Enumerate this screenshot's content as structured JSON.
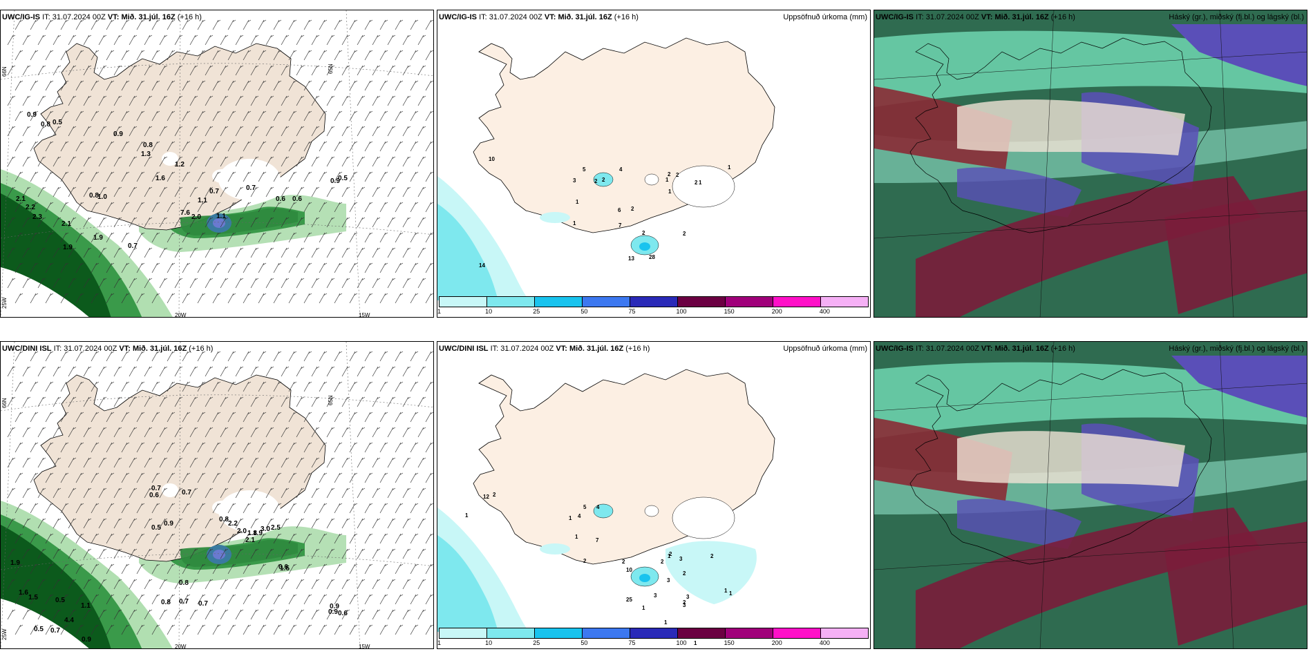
{
  "rows": [
    {
      "model": "UWC/IG-IS",
      "it_label": "IT:",
      "it_value": "31.07.2024 00Z",
      "vt_label": "VT:",
      "vt_value": "Mið. 31.júl. 16Z",
      "lead": "(+16 h)",
      "precip_title": "Uppsöfnuð úrkoma (mm)",
      "cloud_title": "Háský (gr.), miðský (fj.bl.) og lágský (bl.)",
      "wind_values": [
        {
          "t": "0.9"
        },
        {
          "t": "0.8"
        },
        {
          "t": "0.5"
        },
        {
          "t": "0.9"
        },
        {
          "t": "0.8"
        },
        {
          "t": "1.3"
        },
        {
          "t": "1.2"
        },
        {
          "t": "1.6"
        },
        {
          "t": "0.8"
        },
        {
          "t": "1.0"
        },
        {
          "t": "2.1"
        },
        {
          "t": "2.2"
        },
        {
          "t": "2.3"
        },
        {
          "t": "2.1"
        },
        {
          "t": "1.9"
        },
        {
          "t": "1.9"
        },
        {
          "t": "0.7"
        },
        {
          "t": "1.1"
        },
        {
          "t": "0.7"
        },
        {
          "t": "7.6"
        },
        {
          "t": "2.0"
        },
        {
          "t": "1.1"
        },
        {
          "t": "0.7"
        },
        {
          "t": "0.6"
        },
        {
          "t": "0.6"
        },
        {
          "t": "0.9"
        },
        {
          "t": "0.5"
        }
      ],
      "precip_values": [
        {
          "t": "10"
        },
        {
          "t": "5"
        },
        {
          "t": "4"
        },
        {
          "t": "3"
        },
        {
          "t": "2"
        },
        {
          "t": "2"
        },
        {
          "t": "6"
        },
        {
          "t": "2"
        },
        {
          "t": "1"
        },
        {
          "t": "7"
        },
        {
          "t": "1"
        },
        {
          "t": "2"
        },
        {
          "t": "2"
        },
        {
          "t": "13"
        },
        {
          "t": "28"
        },
        {
          "t": "2"
        },
        {
          "t": "14"
        },
        {
          "t": "1"
        },
        {
          "t": "2"
        },
        {
          "t": "1"
        },
        {
          "t": "1"
        },
        {
          "t": "2"
        },
        {
          "t": "1"
        }
      ]
    },
    {
      "model": "UWC/DINI ISL",
      "it_label": "IT:",
      "it_value": "31.07.2024 00Z",
      "vt_label": "VT:",
      "vt_value": "Mið. 31.júl. 16Z",
      "lead": "(+16 h)",
      "precip_title": "Uppsöfnuð úrkoma (mm)",
      "cloud_title": "Háský (gr.), miðský (fj.bl.) og lágský (bl.)",
      "cloud_model": "UWC/IG-IS",
      "wind_values": [
        {
          "t": "0.7"
        },
        {
          "t": "0.6"
        },
        {
          "t": "0.7"
        },
        {
          "t": "0.5"
        },
        {
          "t": "0.9"
        },
        {
          "t": "0.8"
        },
        {
          "t": "2.2"
        },
        {
          "t": "2.0"
        },
        {
          "t": "2.1"
        },
        {
          "t": "1.8"
        },
        {
          "t": "1.9"
        },
        {
          "t": "3.0"
        },
        {
          "t": "2.5"
        },
        {
          "t": "1.9"
        },
        {
          "t": "1.6"
        },
        {
          "t": "1.5"
        },
        {
          "t": "0.5"
        },
        {
          "t": "1.1"
        },
        {
          "t": "4.4"
        },
        {
          "t": "0.5"
        },
        {
          "t": "0.7"
        },
        {
          "t": "0.9"
        },
        {
          "t": "0.8"
        },
        {
          "t": "0.8"
        },
        {
          "t": "0.7"
        },
        {
          "t": "0.7"
        },
        {
          "t": "0.6"
        },
        {
          "t": "0.9"
        },
        {
          "t": "0.9"
        },
        {
          "t": "0.6"
        },
        {
          "t": "1.5"
        }
      ],
      "precip_values": [
        {
          "t": "12"
        },
        {
          "t": "2"
        },
        {
          "t": "1"
        },
        {
          "t": "5"
        },
        {
          "t": "4"
        },
        {
          "t": "4"
        },
        {
          "t": "1"
        },
        {
          "t": "1"
        },
        {
          "t": "7"
        },
        {
          "t": "2"
        },
        {
          "t": "2"
        },
        {
          "t": "10"
        },
        {
          "t": "25"
        },
        {
          "t": "1"
        },
        {
          "t": "3"
        },
        {
          "t": "3"
        },
        {
          "t": "2"
        },
        {
          "t": "2"
        },
        {
          "t": "2"
        },
        {
          "t": "1"
        },
        {
          "t": "3"
        },
        {
          "t": "2"
        },
        {
          "t": "1"
        },
        {
          "t": "1"
        },
        {
          "t": "9"
        },
        {
          "t": "1"
        },
        {
          "t": "2"
        },
        {
          "t": "3"
        },
        {
          "t": "3"
        },
        {
          "t": "1"
        }
      ]
    }
  ],
  "gridlabels": {
    "n66": "66N",
    "n65": "65N",
    "w25": "25W",
    "w20": "20W",
    "w15": "15W"
  },
  "legend": {
    "colors": [
      "#c8f7f7",
      "#7ee8ee",
      "#19c3ee",
      "#3c78f0",
      "#2a2ab8",
      "#6b0042",
      "#a0007a",
      "#ff10c8",
      "#f5b0f5"
    ],
    "labels": [
      "1",
      "10",
      "25",
      "50",
      "75",
      "100",
      "150",
      "200",
      "400"
    ]
  },
  "colors": {
    "land": "#f0e3d6",
    "land_light": "#fcefe3",
    "sea": "#ffffff",
    "precip": "#7ee8ee"
  }
}
